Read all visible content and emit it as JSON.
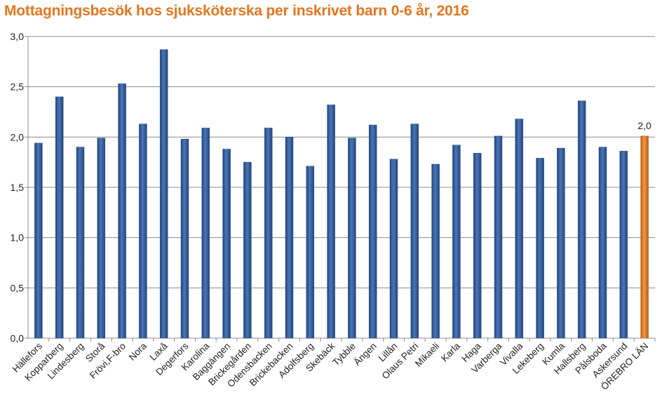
{
  "chart_data": {
    "type": "bar",
    "title": "Mottagningsbesök hos sjuksköterska per inskrivet barn 0-6 år, 2016",
    "xlabel": "",
    "ylabel": "",
    "ylim": [
      0,
      3.0
    ],
    "yticks": [
      "0,0",
      "0,5",
      "1,0",
      "1,5",
      "2,0",
      "2,5",
      "3,0"
    ],
    "grid": true,
    "categories": [
      "Hällefors",
      "Kopparberg",
      "Lindesberg",
      "Storå",
      "Frövi,F-bro",
      "Nora",
      "Laxå",
      "Degerfors",
      "Karolina",
      "Baggängen",
      "Brickegården",
      "Odensbacken",
      "Brickebacken",
      "Adolfsberg",
      "Skebäck",
      "Tybble",
      "Ängen",
      "Lillån",
      "Olaus Petri",
      "Mikaeli",
      "Karla",
      "Haga",
      "Varberga",
      "Vivalla",
      "Lekeberg",
      "Kumla",
      "Hallsberg",
      "Pålsboda",
      "Askersund",
      "ÖREBRO LÄN"
    ],
    "values": [
      1.94,
      2.4,
      1.9,
      1.99,
      2.53,
      2.13,
      2.87,
      1.98,
      2.09,
      1.88,
      1.75,
      2.09,
      2.0,
      1.71,
      2.32,
      1.99,
      2.12,
      1.78,
      2.13,
      1.73,
      1.92,
      1.84,
      2.01,
      2.18,
      1.79,
      1.89,
      2.36,
      1.9,
      1.86,
      2.01
    ],
    "bar_color": "#3a62a0",
    "highlight_color": "#e8822c",
    "highlight_index": 29,
    "data_labels": [
      {
        "index": 29,
        "text": "2,0"
      }
    ]
  }
}
